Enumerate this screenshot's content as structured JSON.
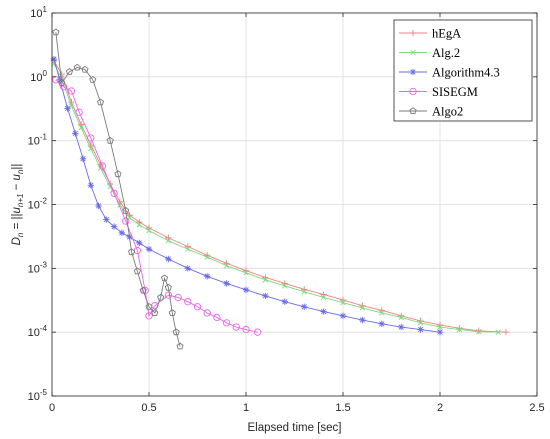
{
  "chart_data": {
    "type": "line",
    "xlabel": "Elapsed time [sec]",
    "ylabel_parts": {
      "lhs": "D",
      "sub_n": "n",
      "eq": " = ||",
      "u1": "u",
      "sub_n1": "n+1",
      "minus": " − ",
      "u2": "u",
      "sub_n2": "n",
      "close": "||"
    },
    "xlim": [
      0,
      2.5
    ],
    "ylim": [
      1e-05,
      10
    ],
    "yscale": "log",
    "grid": true,
    "legend_position": "top-right",
    "xticks": [
      "0",
      "0.5",
      "1",
      "1.5",
      "2",
      "2.5"
    ],
    "xtick_values": [
      0,
      0.5,
      1,
      1.5,
      2,
      2.5
    ],
    "yticks": [
      {
        "base": "10",
        "exp": "1",
        "value": 10
      },
      {
        "base": "10",
        "exp": "0",
        "value": 1
      },
      {
        "base": "10",
        "exp": "-1",
        "value": 0.1
      },
      {
        "base": "10",
        "exp": "-2",
        "value": 0.01
      },
      {
        "base": "10",
        "exp": "-3",
        "value": 0.001
      },
      {
        "base": "10",
        "exp": "-4",
        "value": 0.0001
      },
      {
        "base": "10",
        "exp": "-5",
        "value": 1e-05
      }
    ],
    "series": [
      {
        "name": "hEgA",
        "color": "#f08080",
        "marker": "plus",
        "x": [
          0.01,
          0.05,
          0.1,
          0.15,
          0.2,
          0.25,
          0.3,
          0.35,
          0.4,
          0.45,
          0.5,
          0.6,
          0.7,
          0.8,
          0.9,
          1.0,
          1.1,
          1.2,
          1.3,
          1.4,
          1.5,
          1.6,
          1.7,
          1.8,
          1.9,
          2.0,
          2.1,
          2.2,
          2.34
        ],
        "y": [
          1.8,
          1.1,
          0.4,
          0.18,
          0.085,
          0.042,
          0.021,
          0.011,
          0.0068,
          0.0053,
          0.0043,
          0.003,
          0.0022,
          0.0016,
          0.0012,
          0.00092,
          0.00072,
          0.00058,
          0.00047,
          0.00039,
          0.00032,
          0.00026,
          0.00022,
          0.00018,
          0.00015,
          0.00013,
          0.000115,
          0.000105,
          0.0001
        ]
      },
      {
        "name": "Alg.2",
        "color": "#7fd97f",
        "marker": "x",
        "x": [
          0.01,
          0.05,
          0.1,
          0.15,
          0.2,
          0.25,
          0.3,
          0.35,
          0.4,
          0.45,
          0.5,
          0.6,
          0.7,
          0.8,
          0.9,
          1.0,
          1.1,
          1.2,
          1.3,
          1.4,
          1.5,
          1.6,
          1.7,
          1.8,
          1.9,
          2.0,
          2.1,
          2.2,
          2.3
        ],
        "y": [
          1.6,
          0.95,
          0.35,
          0.16,
          0.075,
          0.037,
          0.019,
          0.0098,
          0.0062,
          0.0048,
          0.0039,
          0.0027,
          0.002,
          0.0015,
          0.0011,
          0.00085,
          0.00066,
          0.00053,
          0.00043,
          0.00035,
          0.00029,
          0.00024,
          0.0002,
          0.00017,
          0.00014,
          0.00012,
          0.00011,
          0.000102,
          0.0001
        ]
      },
      {
        "name": "Algorithm4.3",
        "color": "#6a6ae8",
        "marker": "star",
        "x": [
          0.01,
          0.04,
          0.08,
          0.12,
          0.16,
          0.2,
          0.24,
          0.28,
          0.32,
          0.36,
          0.4,
          0.45,
          0.5,
          0.6,
          0.7,
          0.8,
          0.9,
          1.0,
          1.1,
          1.2,
          1.3,
          1.4,
          1.5,
          1.6,
          1.7,
          1.8,
          1.9,
          2.0
        ],
        "y": [
          1.9,
          0.9,
          0.32,
          0.13,
          0.052,
          0.02,
          0.0095,
          0.0058,
          0.0045,
          0.0036,
          0.0031,
          0.0025,
          0.002,
          0.0014,
          0.001,
          0.00075,
          0.00058,
          0.00046,
          0.00037,
          0.0003,
          0.00025,
          0.00021,
          0.00018,
          0.000155,
          0.000135,
          0.00012,
          0.00011,
          0.0001
        ]
      },
      {
        "name": "SISEGM",
        "color": "#e866e8",
        "marker": "circle",
        "x": [
          0.02,
          0.06,
          0.1,
          0.14,
          0.2,
          0.26,
          0.32,
          0.38,
          0.44,
          0.48,
          0.5,
          0.53,
          0.6,
          0.65,
          0.7,
          0.75,
          0.8,
          0.85,
          0.9,
          0.95,
          1.0,
          1.06
        ],
        "y": [
          0.9,
          0.7,
          0.6,
          0.28,
          0.11,
          0.04,
          0.015,
          0.0055,
          0.0019,
          0.00045,
          0.00018,
          0.00026,
          0.00038,
          0.00035,
          0.0003,
          0.00025,
          0.0002,
          0.00017,
          0.00014,
          0.00012,
          0.00011,
          0.0001
        ]
      },
      {
        "name": "Algo2",
        "color": "#7a7a7a",
        "marker": "pentagon",
        "x": [
          0.02,
          0.05,
          0.09,
          0.13,
          0.17,
          0.21,
          0.25,
          0.3,
          0.34,
          0.38,
          0.41,
          0.44,
          0.47,
          0.5,
          0.53,
          0.56,
          0.58,
          0.6,
          0.62,
          0.64,
          0.66
        ],
        "y": [
          5.0,
          0.8,
          1.2,
          1.4,
          1.3,
          0.9,
          0.4,
          0.1,
          0.03,
          0.008,
          0.0018,
          0.0009,
          0.00045,
          0.00025,
          0.0002,
          0.00035,
          0.0007,
          0.0005,
          0.0002,
          0.0001,
          6e-05
        ]
      }
    ]
  }
}
